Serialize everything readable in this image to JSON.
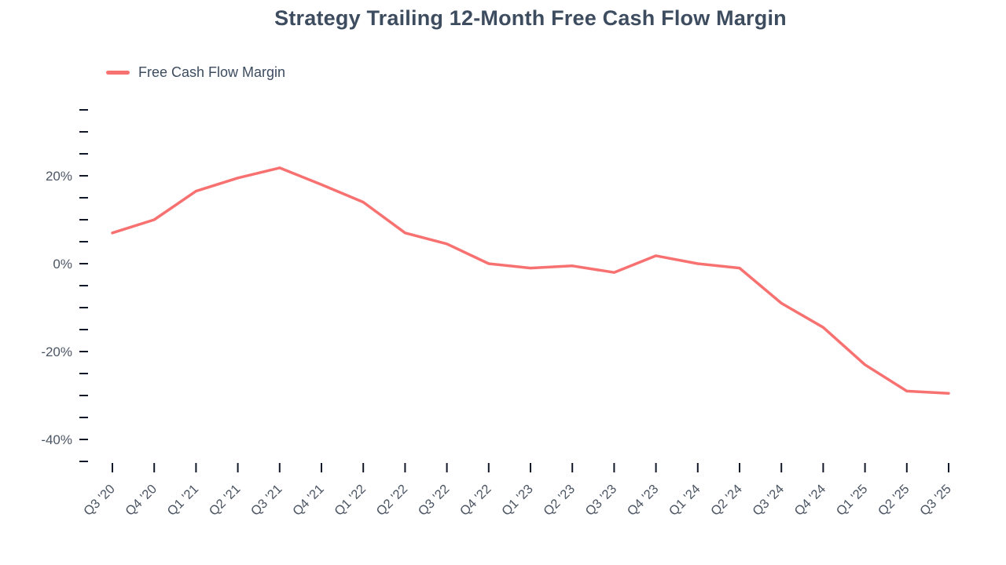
{
  "title": "Strategy Trailing 12-Month Free Cash Flow Margin",
  "legend": {
    "label": "Free Cash Flow Margin",
    "color": "#f87171"
  },
  "colors": {
    "title_text": "#3d4c5f",
    "axis_label_text": "#4b5563",
    "tick_mark": "#111827",
    "line": "#f87171"
  },
  "chart_data": {
    "type": "line",
    "title": "Strategy Trailing 12-Month Free Cash Flow Margin",
    "xlabel": "",
    "ylabel": "",
    "categories": [
      "Q3 '20",
      "Q4 '20",
      "Q1 '21",
      "Q2 '21",
      "Q3 '21",
      "Q4 '21",
      "Q1 '22",
      "Q2 '22",
      "Q3 '22",
      "Q4 '22",
      "Q1 '23",
      "Q2 '23",
      "Q3 '23",
      "Q4 '23",
      "Q1 '24",
      "Q2 '24",
      "Q3 '24",
      "Q4 '24",
      "Q1 '25",
      "Q2 '25",
      "Q3 '25"
    ],
    "series": [
      {
        "name": "Free Cash Flow Margin",
        "values": [
          7,
          10,
          16.5,
          19.5,
          21.8,
          18,
          14,
          7,
          4.5,
          0,
          -1,
          -0.5,
          -2,
          1.8,
          0,
          -1,
          -9,
          -14.5,
          -23,
          -29,
          -29.5
        ]
      }
    ],
    "ylim": [
      -45,
      35
    ],
    "ytick_step": 5,
    "ytick_labeled": [
      20,
      0,
      -20,
      -40
    ],
    "ytick_label_suffix": "%",
    "grid": false,
    "legend_position": "top-left",
    "line_color": "#f87171"
  }
}
